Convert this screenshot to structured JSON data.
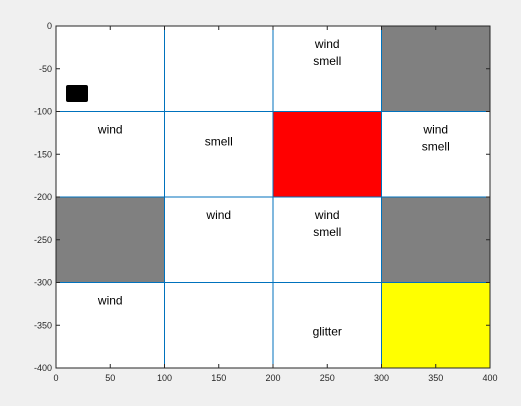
{
  "axes": {
    "x_ticks": [
      "0",
      "50",
      "100",
      "150",
      "200",
      "250",
      "300",
      "350",
      "400"
    ],
    "y_ticks": [
      "0",
      "-50",
      "-100",
      "-150",
      "-200",
      "-250",
      "-300",
      "-350",
      "-400"
    ]
  },
  "colors": {
    "background": "#f0f0f0",
    "plot_area": "#ffffff",
    "grid_line": "#0072bd",
    "pit": "#808080",
    "wumpus": "#ff0000",
    "gold": "#ffff00",
    "agent": "#000000",
    "text": "#000000"
  },
  "grid": {
    "cells": [
      {
        "row": 0,
        "col": 0,
        "type": "empty",
        "labels": []
      },
      {
        "row": 0,
        "col": 1,
        "type": "empty",
        "labels": []
      },
      {
        "row": 0,
        "col": 2,
        "type": "empty",
        "labels": [
          "wind",
          "smell"
        ]
      },
      {
        "row": 0,
        "col": 3,
        "type": "pit",
        "labels": []
      },
      {
        "row": 1,
        "col": 0,
        "type": "empty",
        "labels": [
          "wind"
        ]
      },
      {
        "row": 1,
        "col": 1,
        "type": "empty",
        "labels": [
          "smell"
        ]
      },
      {
        "row": 1,
        "col": 2,
        "type": "wumpus",
        "labels": []
      },
      {
        "row": 1,
        "col": 3,
        "type": "empty",
        "labels": [
          "wind",
          "smell"
        ]
      },
      {
        "row": 2,
        "col": 0,
        "type": "pit",
        "labels": []
      },
      {
        "row": 2,
        "col": 1,
        "type": "empty",
        "labels": [
          "wind"
        ]
      },
      {
        "row": 2,
        "col": 2,
        "type": "empty",
        "labels": [
          "wind",
          "smell"
        ]
      },
      {
        "row": 2,
        "col": 3,
        "type": "pit",
        "labels": []
      },
      {
        "row": 3,
        "col": 0,
        "type": "empty",
        "labels": [
          "wind"
        ]
      },
      {
        "row": 3,
        "col": 1,
        "type": "empty",
        "labels": []
      },
      {
        "row": 3,
        "col": 2,
        "type": "empty",
        "labels": [
          "glitter"
        ]
      },
      {
        "row": 3,
        "col": 3,
        "type": "gold",
        "labels": []
      }
    ]
  },
  "agent": {
    "row": 0,
    "col": 0
  }
}
